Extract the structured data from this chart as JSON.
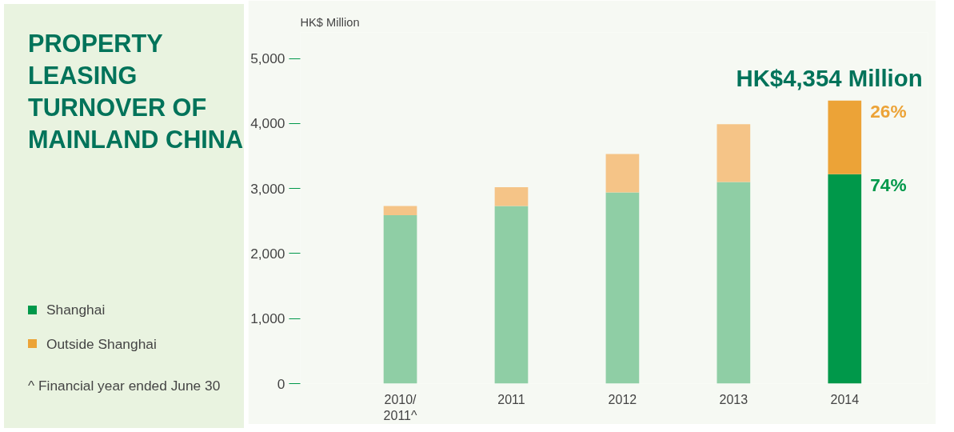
{
  "chart_data": {
    "type": "bar",
    "title": "PROPERTY LEASING TURNOVER OF MAINLAND CHINA",
    "ylabel": "HK$ Million",
    "categories": [
      "2010/\n2011^",
      "2011",
      "2012",
      "2013",
      "2014"
    ],
    "stacked": true,
    "series": [
      {
        "name": "Shanghai",
        "color": "#00984a",
        "colors": [
          "#8fcea5",
          "#8fcea5",
          "#8fcea5",
          "#8fcea5",
          "#00984a"
        ],
        "values": [
          2590,
          2730,
          2940,
          3100,
          3220
        ]
      },
      {
        "name": "Outside Shanghai",
        "color": "#eca337",
        "colors": [
          "#f5c487",
          "#f5c487",
          "#f5c487",
          "#f5c487",
          "#eca337"
        ],
        "values": [
          140,
          290,
          590,
          890,
          1130
        ]
      }
    ],
    "ylim": [
      0,
      5400
    ],
    "yticks": [
      {
        "value": 0,
        "label": "0"
      },
      {
        "value": 1000,
        "label": "1,000"
      },
      {
        "value": 2000,
        "label": "2,000"
      },
      {
        "value": 3000,
        "label": "3,000"
      },
      {
        "value": 4000,
        "label": "4,000"
      },
      {
        "value": 5000,
        "label": "5,000"
      }
    ],
    "legend": "bottom left",
    "annotations": [
      {
        "text": "HK$4,354 Million",
        "x": "2014",
        "y": 4354
      },
      {
        "text": "26%",
        "x": "2014",
        "y": 4354
      },
      {
        "text": "74%",
        "x": "2014",
        "y": 3220
      },
      "^ Financial year ended June 30"
    ]
  }
}
